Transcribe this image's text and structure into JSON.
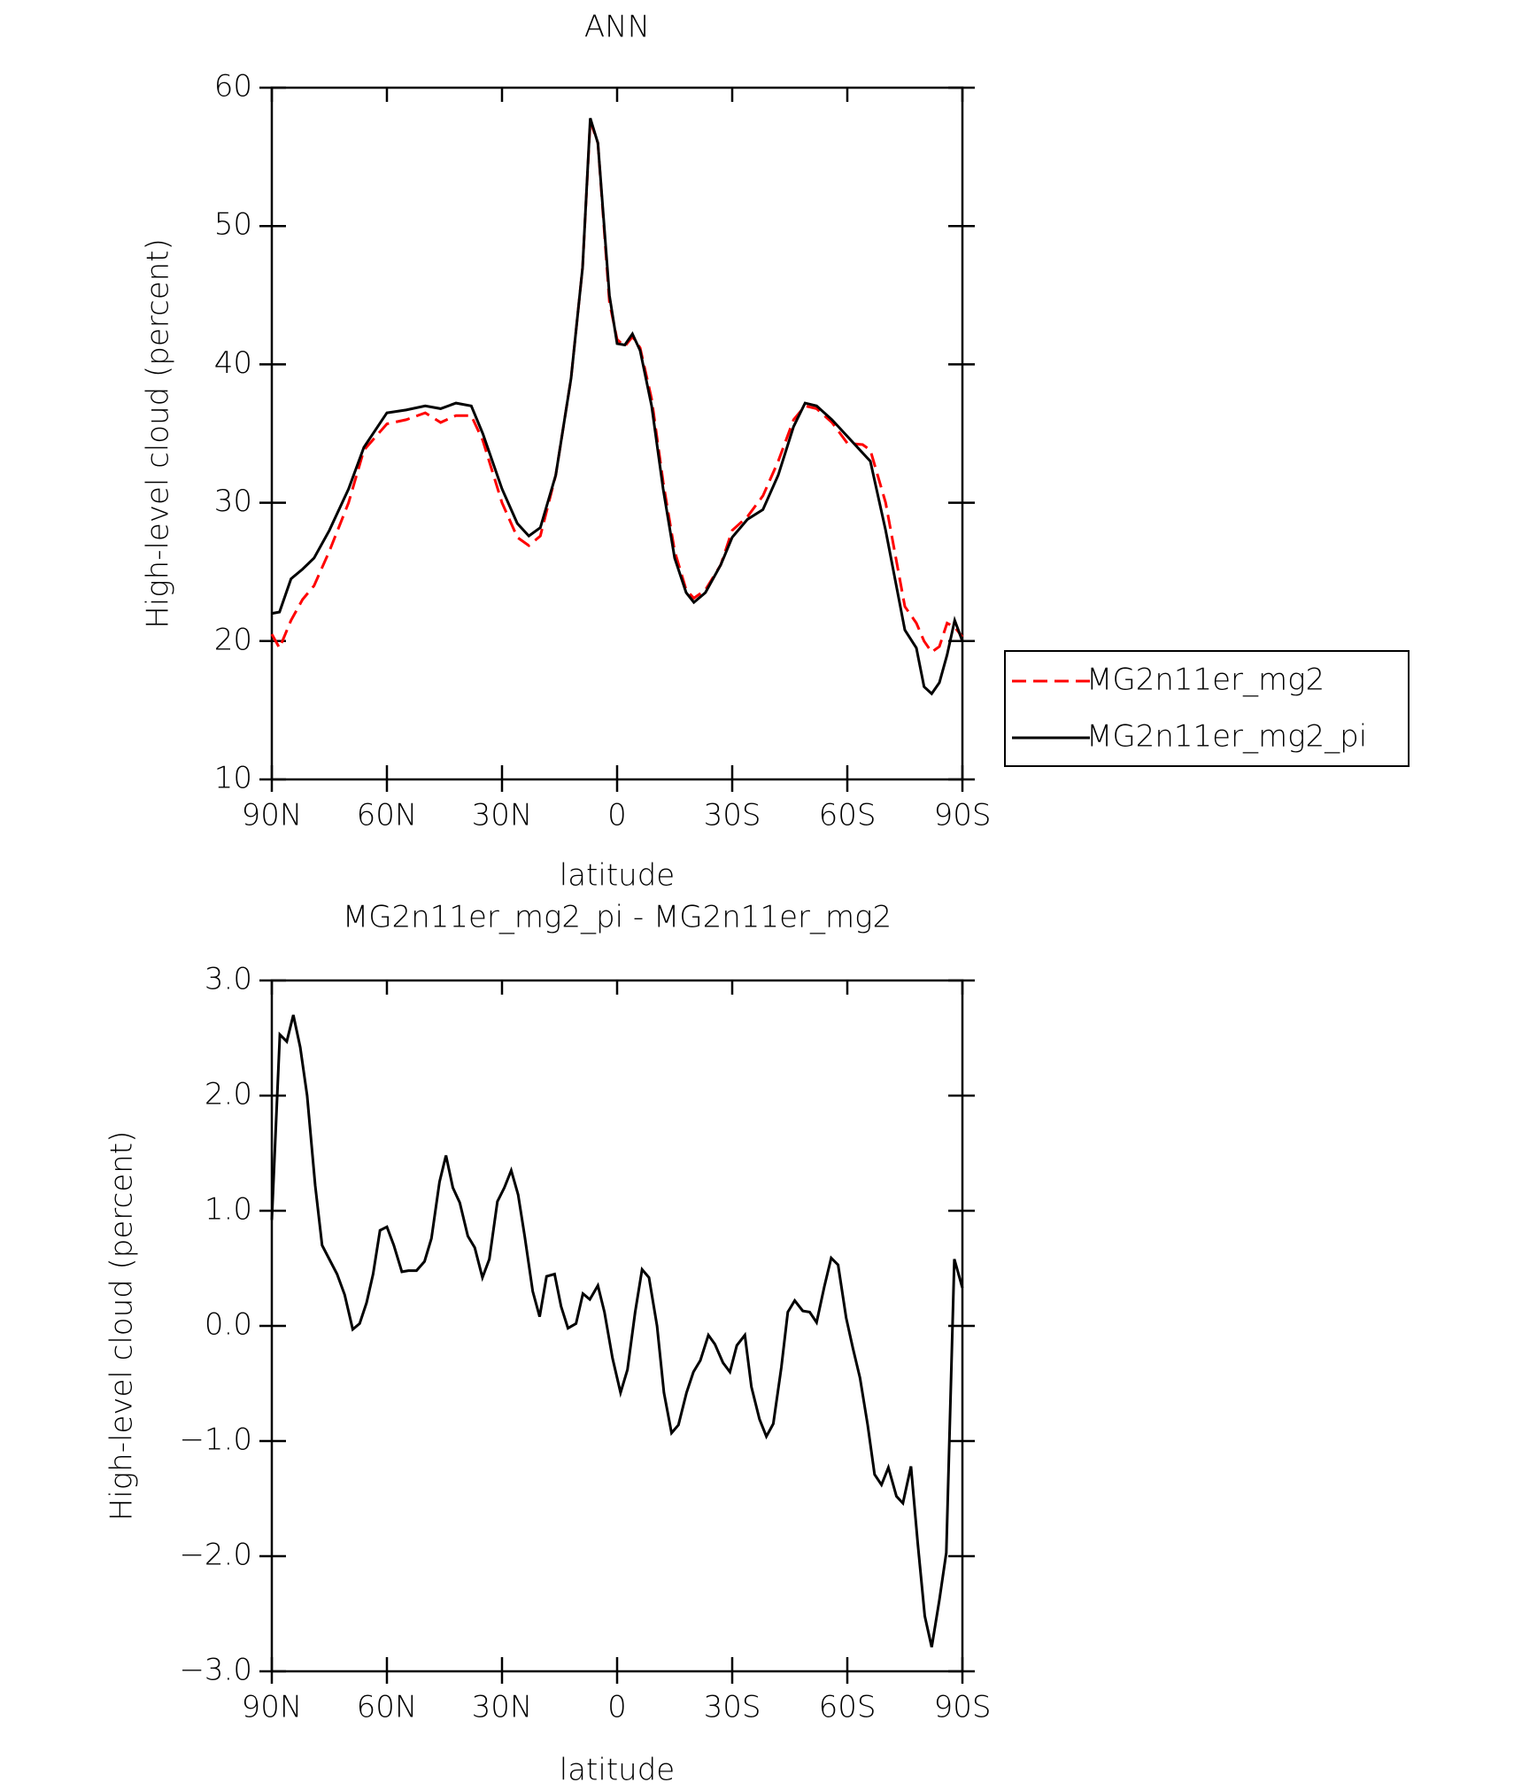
{
  "chart_data": [
    {
      "type": "line",
      "title": "ANN",
      "xlabel": "latitude",
      "ylabel": "High-level cloud (percent)",
      "x": [
        90,
        88,
        85,
        82,
        79,
        75,
        70,
        66,
        60,
        55,
        50,
        46,
        42,
        38,
        35,
        30,
        26,
        23,
        20,
        16,
        12,
        9,
        7,
        5,
        2,
        0,
        -2,
        -4,
        -6,
        -9,
        -12,
        -15,
        -18,
        -20,
        -23,
        -27,
        -30,
        -34,
        -38,
        -42,
        -46,
        -49,
        -52,
        -56,
        -60,
        -64,
        -66,
        -70,
        -75,
        -78,
        -80,
        -82,
        -84,
        -86,
        -88,
        -90
      ],
      "series": [
        {
          "name": "MG2n11er_mg2",
          "color": "#ff0000",
          "line_style": "dashed",
          "values": [
            20.5,
            19.5,
            21.5,
            23,
            24,
            26.5,
            30,
            33.8,
            35.7,
            36,
            36.5,
            35.8,
            36.3,
            36.3,
            34.5,
            30,
            27.5,
            26.9,
            27.6,
            32,
            39,
            47,
            57.6,
            56,
            44.5,
            41.8,
            41.3,
            42,
            41.2,
            37.5,
            31.5,
            26.5,
            23.7,
            23.1,
            23.7,
            25.5,
            28,
            29,
            30.5,
            33,
            36,
            37,
            36.8,
            35.8,
            34.3,
            34.2,
            33.8,
            30,
            22.5,
            21.3,
            20,
            19.2,
            19.6,
            21.3,
            21,
            20.3
          ]
        },
        {
          "name": "MG2n11er_mg2_pi",
          "color": "#000000",
          "line_style": "solid",
          "values": [
            22,
            22.1,
            24.5,
            25.2,
            26,
            28,
            31,
            34,
            36.5,
            36.7,
            37,
            36.8,
            37.2,
            37,
            35,
            31,
            28.5,
            27.6,
            28.2,
            32,
            39,
            47,
            57.8,
            56,
            45,
            41.5,
            41.4,
            42.2,
            41,
            37,
            31,
            26,
            23.5,
            22.8,
            23.5,
            25.5,
            27.5,
            28.8,
            29.5,
            32,
            35.5,
            37.2,
            37,
            36,
            34.8,
            33.6,
            33,
            28,
            20.8,
            19.5,
            16.7,
            16.2,
            17,
            19,
            21.5,
            20
          ]
        }
      ],
      "xlim": [
        90,
        -90
      ],
      "xticks": [
        {
          "value": 90,
          "label": "90N"
        },
        {
          "value": 60,
          "label": "60N"
        },
        {
          "value": 30,
          "label": "30N"
        },
        0,
        {
          "value": -30,
          "label": "30S"
        },
        {
          "value": -60,
          "label": "60S"
        },
        {
          "value": -90,
          "label": "90S"
        }
      ],
      "ylim": [
        10,
        60
      ],
      "yticks": [
        10,
        20,
        30,
        40,
        50,
        60
      ],
      "legend": "right"
    },
    {
      "type": "line",
      "title": "MG2n11er_mg2_pi - MG2n11er_mg2",
      "xlabel": "latitude",
      "ylabel": "High-level cloud (percent)",
      "x": [
        90,
        87.9,
        86.1,
        84.4,
        82.6,
        80.8,
        78.7,
        76.9,
        73.0,
        71.0,
        68.9,
        67.1,
        65.3,
        63.6,
        61.8,
        60.0,
        58.2,
        56.1,
        54.4,
        52.3,
        50.2,
        48.4,
        46.3,
        44.6,
        42.8,
        41.0,
        38.9,
        37.1,
        35.1,
        33.3,
        31.2,
        29.4,
        27.6,
        25.8,
        24.1,
        22.0,
        20.2,
        18.4,
        16.3,
        14.6,
        12.8,
        10.7,
        8.9,
        7.1,
        5.0,
        3.3,
        1.2,
        -0.9,
        -2.7,
        -4.7,
        -6.5,
        -8.3,
        -10.4,
        -12.2,
        -14.2,
        -16.0,
        -18.1,
        -19.9,
        -21.7,
        -23.8,
        -25.5,
        -27.6,
        -29.4,
        -31.2,
        -33.3,
        -35.0,
        -37.1,
        -38.9,
        -40.7,
        -42.8,
        -44.5,
        -46.3,
        -48.4,
        -50.2,
        -52.0,
        -54.0,
        -55.8,
        -57.6,
        -59.7,
        -61.5,
        -63.3,
        -65.3,
        -67.1,
        -68.9,
        -70.7,
        -72.8,
        -74.5,
        -76.6,
        -78.4,
        -80.2,
        -82.0,
        -84.0,
        -85.8,
        -87.9,
        -90
      ],
      "color": "#000000",
      "values": [
        0.92,
        2.53,
        2.47,
        2.7,
        2.42,
        2.0,
        1.22,
        0.7,
        0.45,
        0.27,
        -0.03,
        0.02,
        0.2,
        0.45,
        0.83,
        0.86,
        0.7,
        0.47,
        0.48,
        0.48,
        0.56,
        0.76,
        1.25,
        1.48,
        1.2,
        1.07,
        0.78,
        0.68,
        0.42,
        0.58,
        1.08,
        1.2,
        1.35,
        1.14,
        0.78,
        0.3,
        0.08,
        0.43,
        0.45,
        0.17,
        -0.02,
        0.02,
        0.28,
        0.23,
        0.35,
        0.12,
        -0.28,
        -0.58,
        -0.38,
        0.12,
        0.49,
        0.42,
        0,
        -0.58,
        -0.93,
        -0.86,
        -0.58,
        -0.4,
        -0.3,
        -0.08,
        -0.16,
        -0.32,
        -0.4,
        -0.17,
        -0.08,
        -0.53,
        -0.81,
        -0.96,
        -0.85,
        -0.36,
        0.12,
        0.22,
        0.13,
        0.12,
        0.03,
        0.34,
        0.59,
        0.53,
        0.07,
        -0.2,
        -0.45,
        -0.86,
        -1.29,
        -1.38,
        -1.23,
        -1.48,
        -1.54,
        -1.22,
        -1.9,
        -2.52,
        -2.79,
        -2.38,
        -1.97,
        0.58,
        0.33
      ],
      "xlim": [
        90,
        -90
      ],
      "xticks": [
        {
          "value": 90,
          "label": "90N"
        },
        {
          "value": 60,
          "label": "60N"
        },
        {
          "value": 30,
          "label": "30N"
        },
        0,
        {
          "value": -30,
          "label": "30S"
        },
        {
          "value": -60,
          "label": "60S"
        },
        {
          "value": -90,
          "label": "90S"
        }
      ],
      "ylim": [
        -3,
        3
      ],
      "yticks": [
        {
          "value": -3,
          "label": "−3.0"
        },
        {
          "value": -2,
          "label": "−2.0"
        },
        {
          "value": -1,
          "label": "−1.0"
        },
        {
          "value": 0,
          "label": "0.0"
        },
        {
          "value": 1,
          "label": "1.0"
        },
        {
          "value": 2,
          "label": "2.0"
        },
        {
          "value": 3,
          "label": "3.0"
        }
      ]
    }
  ]
}
